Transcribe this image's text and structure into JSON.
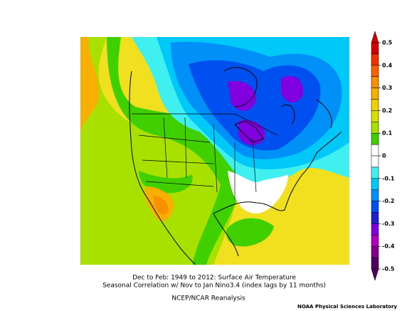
{
  "map": {
    "title_lines": [
      "Dec to Feb: 1949 to 2012: Surface Air Temperature",
      "Seasonal Correlation w/ Nov to Jan Nino3.4 (index lags by 11 months)"
    ],
    "source": "NCEP/NCAR Reanalysis",
    "credit": "NOAA Physical Sciences Laboratory",
    "colorbar": {
      "lim": [
        -0.5,
        0.5
      ],
      "ticks": [
        0.5,
        0.4,
        0.3,
        0.2,
        0.1,
        0,
        -0.1,
        -0.2,
        -0.3,
        -0.4,
        -0.5
      ],
      "colors": [
        "#d40000",
        "#f03000",
        "#f86000",
        "#f89000",
        "#f8b000",
        "#f0d000",
        "#d8e000",
        "#a8e000",
        "#40d000",
        "#ffffff",
        "#ffffff",
        "#40f0f0",
        "#00c8f8",
        "#0090f8",
        "#0050f0",
        "#2020d0",
        "#8000e0",
        "#b000c0",
        "#800090",
        "#500060"
      ]
    }
  }
}
